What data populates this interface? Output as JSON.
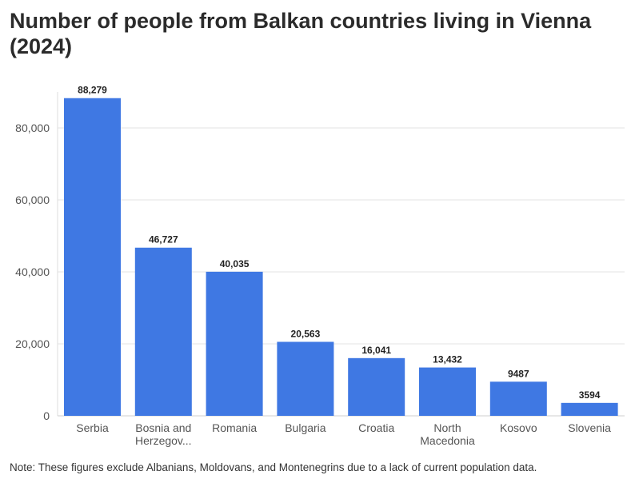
{
  "chart_data": {
    "type": "bar",
    "title": "Number of people from Balkan countries living in Vienna (2024)",
    "categories": [
      "Serbia",
      "Bosnia and Herzegov...",
      "Romania",
      "Bulgaria",
      "Croatia",
      "North Macedonia",
      "Kosovo",
      "Slovenia"
    ],
    "category_lines": [
      [
        "Serbia"
      ],
      [
        "Bosnia and",
        "Herzegov..."
      ],
      [
        "Romania"
      ],
      [
        "Bulgaria"
      ],
      [
        "Croatia"
      ],
      [
        "North",
        "Macedonia"
      ],
      [
        "Kosovo"
      ],
      [
        "Slovenia"
      ]
    ],
    "values": [
      88279,
      46727,
      40035,
      20563,
      16041,
      13432,
      9487,
      3594
    ],
    "value_labels": [
      "88,279",
      "46,727",
      "40,035",
      "20,563",
      "16,041",
      "13,432",
      "9487",
      "3594"
    ],
    "yticks": [
      0,
      20000,
      40000,
      60000,
      80000
    ],
    "ytick_labels": [
      "0",
      "20,000",
      "40,000",
      "60,000",
      "80,000"
    ],
    "ylim": [
      0,
      90000
    ],
    "xlabel": "",
    "ylabel": "",
    "grid": true,
    "bar_color": "#3f78e3"
  },
  "note": "Note: These figures exclude Albanians, Moldovans, and Montenegrins due to a lack of current population data."
}
